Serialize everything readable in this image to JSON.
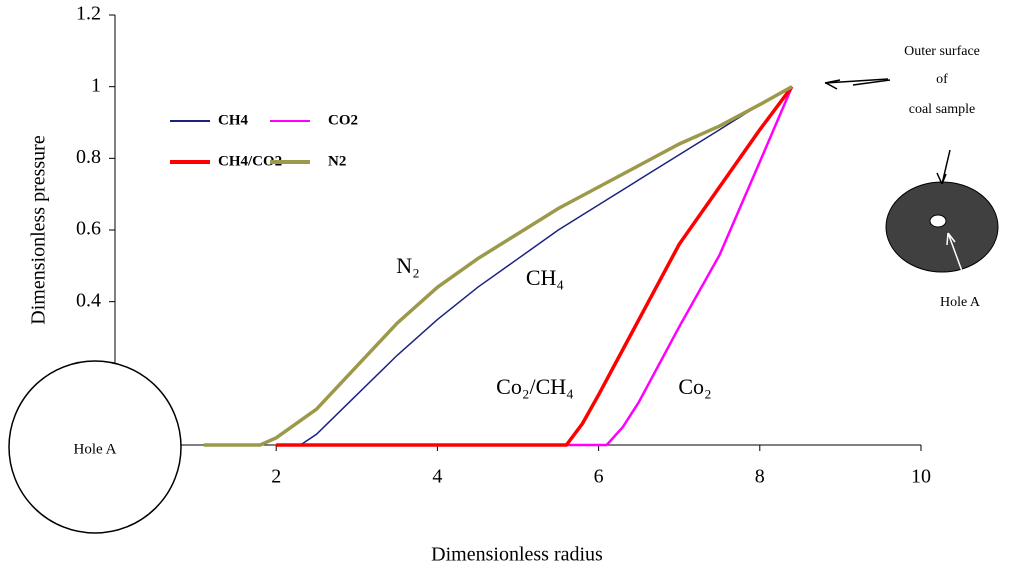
{
  "chart_data": {
    "type": "line",
    "x_label": "Dimensionless radius",
    "y_label": "Dimensionless pressure",
    "xlim": [
      0,
      10
    ],
    "xticks": [
      2,
      4,
      6,
      8,
      10
    ],
    "ylim": [
      0,
      1.2
    ],
    "yticks": [
      0.4,
      0.6,
      0.8,
      1,
      1.2
    ],
    "series": [
      {
        "name": "CH4",
        "color": "#1a237e",
        "x": [
          2.3,
          2.5,
          3,
          3.5,
          4,
          4.5,
          5,
          5.5,
          6,
          6.5,
          7,
          7.5,
          8,
          8.4
        ],
        "values": [
          0,
          0.03,
          0.14,
          0.25,
          0.35,
          0.44,
          0.52,
          0.6,
          0.67,
          0.74,
          0.81,
          0.88,
          0.95,
          1
        ]
      },
      {
        "name": "CO2",
        "color": "#ff00ff",
        "x": [
          5.6,
          6.1,
          6.3,
          6.5,
          7,
          7.5,
          8,
          8.4
        ],
        "values": [
          0,
          0,
          0.05,
          0.12,
          0.33,
          0.53,
          0.79,
          1
        ]
      },
      {
        "name": "CH4/CO2",
        "color": "#ff0000",
        "x": [
          2,
          5.6,
          5.8,
          6,
          6.5,
          7,
          7.5,
          8,
          8.4
        ],
        "values": [
          0,
          0,
          0.06,
          0.14,
          0.35,
          0.56,
          0.72,
          0.88,
          1
        ]
      },
      {
        "name": "N2",
        "color": "#9c9a4a",
        "x": [
          1.1,
          1.8,
          2,
          2.5,
          3,
          3.5,
          4,
          4.5,
          5,
          5.5,
          6,
          6.5,
          7,
          7.5,
          8,
          8.4
        ],
        "values": [
          0,
          0,
          0.02,
          0.1,
          0.22,
          0.34,
          0.44,
          0.52,
          0.59,
          0.66,
          0.72,
          0.78,
          0.84,
          0.89,
          0.95,
          1
        ]
      }
    ],
    "annotations": [
      "N₂",
      "CH₄",
      "Co₂/CH₄",
      "Co₂",
      "Hole  A",
      "Outer surface",
      "of",
      "coal sample",
      "Hole A"
    ]
  }
}
